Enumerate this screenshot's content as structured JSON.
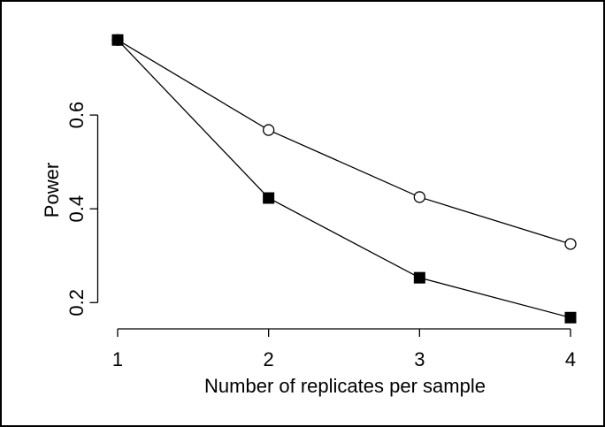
{
  "chart_data": {
    "type": "line",
    "x_label": "Number of replicates per sample",
    "y_label": "Power",
    "x": [
      1,
      2,
      3,
      4
    ],
    "series": [
      {
        "color": "#000000",
        "marker": "open-circle",
        "values": [
          0.76,
          0.568,
          0.425,
          0.325
        ]
      },
      {
        "color": "#000000",
        "marker": "filled-square",
        "values": [
          0.76,
          0.423,
          0.253,
          0.168
        ]
      }
    ],
    "xlim": [
      0.88,
      4.12
    ],
    "xticks": [
      1,
      2,
      3,
      4
    ],
    "ylim": [
      0.144,
      0.784
    ],
    "yticks": [
      0.2,
      0.4,
      0.6
    ]
  }
}
